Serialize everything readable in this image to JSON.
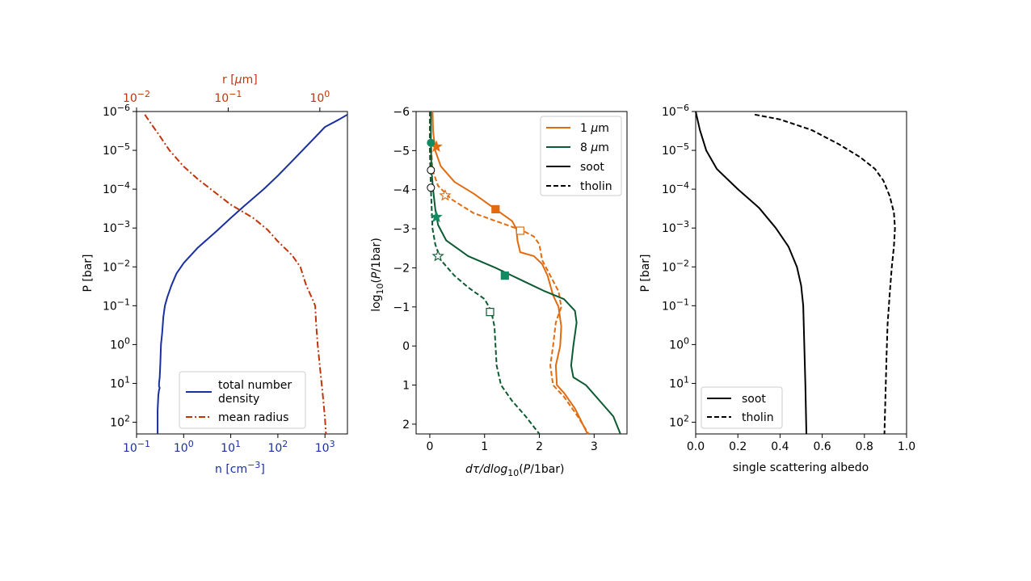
{
  "chart_data": [
    {
      "type": "line",
      "panel": "left",
      "xlabel": "n [cm",
      "xlabel_exp": "−3",
      "xlabel_close": "]",
      "xlabel_color": "#1a2fa0",
      "top_xlabel_pre": "r [",
      "top_xlabel_mu": "μ",
      "top_xlabel_post": "m]",
      "top_xlabel_color": "#c0360b",
      "ylabel": "P [bar]",
      "x_scale": "log",
      "xlim": [
        0.1,
        3000
      ],
      "top_x_scale": "log",
      "top_xlim": [
        0.01,
        2
      ],
      "y_scale": "log",
      "ylim_top": 1e-06,
      "ylim_bottom": 200,
      "y_inverted": true,
      "x_ticks": [
        {
          "base": "10",
          "exp": "−1"
        },
        {
          "base": "10",
          "exp": "0"
        },
        {
          "base": "10",
          "exp": "1"
        },
        {
          "base": "10",
          "exp": "2"
        },
        {
          "base": "10",
          "exp": "3"
        }
      ],
      "top_x_ticks": [
        {
          "base": "10",
          "exp": "−2"
        },
        {
          "base": "10",
          "exp": "−1"
        },
        {
          "base": "10",
          "exp": "0"
        }
      ],
      "y_ticks": [
        {
          "base": "10",
          "exp": "−6"
        },
        {
          "base": "10",
          "exp": "−5"
        },
        {
          "base": "10",
          "exp": "−4"
        },
        {
          "base": "10",
          "exp": "−3"
        },
        {
          "base": "10",
          "exp": "−2"
        },
        {
          "base": "10",
          "exp": "−1"
        },
        {
          "base": "10",
          "exp": "0"
        },
        {
          "base": "10",
          "exp": "1"
        },
        {
          "base": "10",
          "exp": "2"
        }
      ],
      "legend_position": "lower-right",
      "series": [
        {
          "name": "total number density",
          "name_line1": "total number",
          "name_line2": "density",
          "color": "#1a2fa0",
          "dash": "solid",
          "points": [
            [
              3000,
              1.2e-06
            ],
            [
              2000,
              1.6e-06
            ],
            [
              1000,
              2.5e-06
            ],
            [
              500,
              6e-06
            ],
            [
              200,
              1.9e-05
            ],
            [
              100,
              4.5e-05
            ],
            [
              50,
              0.0001
            ],
            [
              20,
              0.00026
            ],
            [
              10,
              0.00055
            ],
            [
              5,
              0.0012
            ],
            [
              2,
              0.0032
            ],
            [
              1,
              0.008
            ],
            [
              0.7,
              0.015
            ],
            [
              0.55,
              0.03
            ],
            [
              0.45,
              0.06
            ],
            [
              0.4,
              0.1
            ],
            [
              0.37,
              0.2
            ],
            [
              0.35,
              0.5
            ],
            [
              0.33,
              1
            ],
            [
              0.32,
              3
            ],
            [
              0.31,
              7
            ],
            [
              0.3,
              10
            ],
            [
              0.3,
              12
            ],
            [
              0.31,
              13
            ],
            [
              0.3,
              15
            ],
            [
              0.29,
              20
            ],
            [
              0.28,
              50
            ],
            [
              0.28,
              200
            ]
          ]
        },
        {
          "name": "mean radius",
          "color": "#c0360b",
          "dash": "dashdot",
          "points": [
            [
              0.15,
              1.2e-06
            ],
            [
              0.2,
              2e-06
            ],
            [
              0.3,
              4e-06
            ],
            [
              0.5,
              1e-05
            ],
            [
              1,
              2.6e-05
            ],
            [
              2,
              5.5e-05
            ],
            [
              5,
              0.00013
            ],
            [
              10,
              0.00025
            ],
            [
              30,
              0.00055
            ],
            [
              60,
              0.0011
            ],
            [
              100,
              0.0022
            ],
            [
              200,
              0.005
            ],
            [
              300,
              0.01
            ],
            [
              400,
              0.03
            ],
            [
              550,
              0.07
            ],
            [
              620,
              0.1
            ],
            [
              650,
              0.3
            ],
            [
              700,
              1
            ],
            [
              800,
              5
            ],
            [
              900,
              20
            ],
            [
              1000,
              80
            ],
            [
              1050,
              200
            ]
          ]
        }
      ]
    },
    {
      "type": "line",
      "panel": "middle",
      "xlabel_pre": "d",
      "xlabel_tau": "τ",
      "xlabel_mid": "/dlog",
      "xlabel_sub": "10",
      "xlabel_p": "(",
      "xlabel_P": "P",
      "xlabel_post": "/1bar)",
      "ylabel_pre": "log",
      "ylabel_sub": "10",
      "ylabel_open": "(",
      "ylabel_P": "P",
      "ylabel_post": "/1bar)",
      "xlim": [
        -0.25,
        3.6
      ],
      "ylim_top": -6,
      "ylim_bottom": 2.25,
      "y_inverted": true,
      "x_ticks": [
        "0",
        "1",
        "2",
        "3"
      ],
      "y_ticks": [
        "−6",
        "−5",
        "−4",
        "−3",
        "−2",
        "−1",
        "0",
        "1",
        "2"
      ],
      "legend_position": "top-right",
      "legend": [
        {
          "label_pre": "1 ",
          "label_mu": "μ",
          "label_post": "m",
          "color": "#e06b10",
          "dash": "solid"
        },
        {
          "label_pre": "8 ",
          "label_mu": "μ",
          "label_post": "m",
          "color": "#0d5a32",
          "dash": "solid"
        },
        {
          "label": "soot",
          "color": "#000000",
          "dash": "solid"
        },
        {
          "label": "tholin",
          "color": "#000000",
          "dash": "dashed"
        }
      ],
      "series": [
        {
          "wavelength": "1 μm",
          "material": "soot",
          "color": "#e06b10",
          "dash": "solid",
          "points": [
            [
              0.05,
              -6
            ],
            [
              0.06,
              -5.5
            ],
            [
              0.1,
              -5
            ],
            [
              0.2,
              -4.6
            ],
            [
              0.45,
              -4.2
            ],
            [
              0.8,
              -3.9
            ],
            [
              1.2,
              -3.5
            ],
            [
              1.5,
              -3.2
            ],
            [
              1.58,
              -3
            ],
            [
              1.6,
              -2.7
            ],
            [
              1.65,
              -2.4
            ],
            [
              1.9,
              -2.3
            ],
            [
              2.05,
              -2.1
            ],
            [
              2.15,
              -1.8
            ],
            [
              2.25,
              -1.3
            ],
            [
              2.35,
              -1
            ],
            [
              2.4,
              -0.5
            ],
            [
              2.38,
              0
            ],
            [
              2.3,
              0.5
            ],
            [
              2.32,
              1
            ],
            [
              2.45,
              1.2
            ],
            [
              2.65,
              1.6
            ],
            [
              2.88,
              2.25
            ]
          ]
        },
        {
          "wavelength": "1 μm",
          "material": "tholin",
          "color": "#e06b10",
          "dash": "dashed",
          "points": [
            [
              0.0,
              -6
            ],
            [
              0.02,
              -5.2
            ],
            [
              0.05,
              -4.5
            ],
            [
              0.15,
              -4.1
            ],
            [
              0.4,
              -3.75
            ],
            [
              0.8,
              -3.4
            ],
            [
              1.3,
              -3.15
            ],
            [
              1.7,
              -2.95
            ],
            [
              1.9,
              -2.8
            ],
            [
              2.0,
              -2.6
            ],
            [
              2.05,
              -2.2
            ],
            [
              2.2,
              -1.8
            ],
            [
              2.35,
              -1.4
            ],
            [
              2.4,
              -1
            ],
            [
              2.3,
              -0.6
            ],
            [
              2.25,
              0
            ],
            [
              2.2,
              0.5
            ],
            [
              2.25,
              1
            ],
            [
              2.45,
              1.3
            ],
            [
              2.7,
              1.8
            ],
            [
              2.9,
              2.25
            ]
          ]
        },
        {
          "wavelength": "8 μm",
          "material": "soot",
          "color": "#0d5a32",
          "dash": "solid",
          "points": [
            [
              0.02,
              -6
            ],
            [
              0.02,
              -5.2
            ],
            [
              0.03,
              -4.5
            ],
            [
              0.06,
              -4
            ],
            [
              0.1,
              -3.5
            ],
            [
              0.15,
              -3.1
            ],
            [
              0.3,
              -2.7
            ],
            [
              0.7,
              -2.3
            ],
            [
              1.2,
              -2
            ],
            [
              1.5,
              -1.8
            ],
            [
              1.8,
              -1.6
            ],
            [
              2.1,
              -1.4
            ],
            [
              2.45,
              -1.2
            ],
            [
              2.65,
              -0.9
            ],
            [
              2.68,
              -0.6
            ],
            [
              2.62,
              0
            ],
            [
              2.58,
              0.5
            ],
            [
              2.62,
              0.8
            ],
            [
              2.85,
              1
            ],
            [
              3.1,
              1.4
            ],
            [
              3.35,
              1.8
            ],
            [
              3.48,
              2.25
            ]
          ]
        },
        {
          "wavelength": "8 μm",
          "material": "tholin",
          "color": "#0d5a32",
          "dash": "dashed",
          "points": [
            [
              0.0,
              -6
            ],
            [
              0.0,
              -5
            ],
            [
              0.02,
              -4
            ],
            [
              0.05,
              -3
            ],
            [
              0.1,
              -2.6
            ],
            [
              0.2,
              -2.2
            ],
            [
              0.45,
              -1.8
            ],
            [
              0.7,
              -1.5
            ],
            [
              1.0,
              -1.2
            ],
            [
              1.12,
              -0.9
            ],
            [
              1.18,
              -0.5
            ],
            [
              1.2,
              0
            ],
            [
              1.22,
              0.5
            ],
            [
              1.3,
              1
            ],
            [
              1.5,
              1.4
            ],
            [
              1.75,
              1.8
            ],
            [
              2.0,
              2.25
            ]
          ]
        }
      ],
      "markers": [
        {
          "shape": "star",
          "filled": true,
          "color": "#e06b10",
          "x": 0.12,
          "y": -5.1
        },
        {
          "shape": "circle",
          "filled": false,
          "color": "#e06b10",
          "x": 0.02,
          "y": -4.5
        },
        {
          "shape": "star",
          "filled": false,
          "color": "#e06b10",
          "x": 0.28,
          "y": -3.85
        },
        {
          "shape": "square",
          "filled": true,
          "color": "#e06b10",
          "x": 1.2,
          "y": -3.5
        },
        {
          "shape": "square",
          "filled": false,
          "color": "#e06b10",
          "x": 1.65,
          "y": -2.95
        },
        {
          "shape": "circle",
          "filled": true,
          "color": "#138a62",
          "x": 0.02,
          "y": -5.2
        },
        {
          "shape": "circle",
          "filled": false,
          "color": "#0d5a32",
          "x": 0.02,
          "y": -4.05
        },
        {
          "shape": "star",
          "filled": true,
          "color": "#138a62",
          "x": 0.12,
          "y": -3.3
        },
        {
          "shape": "star",
          "filled": false,
          "color": "#0d5a32",
          "x": 0.15,
          "y": -2.3
        },
        {
          "shape": "square",
          "filled": true,
          "color": "#138a62",
          "x": 1.37,
          "y": -1.8
        },
        {
          "shape": "square",
          "filled": false,
          "color": "#0d5a32",
          "x": 1.1,
          "y": -0.87
        }
      ]
    },
    {
      "type": "line",
      "panel": "right",
      "xlabel": "single scattering albedo",
      "ylabel": "P [bar]",
      "xlim": [
        0.0,
        1.0
      ],
      "y_scale": "log",
      "ylim_top": 1e-06,
      "ylim_bottom": 200,
      "y_inverted": true,
      "x_ticks": [
        "0.0",
        "0.2",
        "0.4",
        "0.6",
        "0.8",
        "1.0"
      ],
      "y_ticks": [
        {
          "base": "10",
          "exp": "−6"
        },
        {
          "base": "10",
          "exp": "−5"
        },
        {
          "base": "10",
          "exp": "−4"
        },
        {
          "base": "10",
          "exp": "−3"
        },
        {
          "base": "10",
          "exp": "−2"
        },
        {
          "base": "10",
          "exp": "−1"
        },
        {
          "base": "10",
          "exp": "0"
        },
        {
          "base": "10",
          "exp": "1"
        },
        {
          "base": "10",
          "exp": "2"
        }
      ],
      "legend_position": "lower-left",
      "series": [
        {
          "name": "soot",
          "color": "#000000",
          "dash": "solid",
          "points": [
            [
              0.0,
              1e-06
            ],
            [
              0.02,
              3e-06
            ],
            [
              0.05,
              1e-05
            ],
            [
              0.1,
              3e-05
            ],
            [
              0.2,
              0.0001
            ],
            [
              0.3,
              0.0003
            ],
            [
              0.38,
              0.001
            ],
            [
              0.44,
              0.003
            ],
            [
              0.48,
              0.01
            ],
            [
              0.5,
              0.03
            ],
            [
              0.51,
              0.1
            ],
            [
              0.515,
              1
            ],
            [
              0.52,
              10
            ],
            [
              0.525,
              200
            ]
          ]
        },
        {
          "name": "tholin",
          "color": "#000000",
          "dash": "dashed",
          "points": [
            [
              0.28,
              1.2e-06
            ],
            [
              0.4,
              1.6e-06
            ],
            [
              0.55,
              3e-06
            ],
            [
              0.68,
              7e-06
            ],
            [
              0.78,
              1.5e-05
            ],
            [
              0.85,
              3e-05
            ],
            [
              0.89,
              6e-05
            ],
            [
              0.92,
              0.00015
            ],
            [
              0.94,
              0.0004
            ],
            [
              0.945,
              0.001
            ],
            [
              0.94,
              0.003
            ],
            [
              0.93,
              0.01
            ],
            [
              0.92,
              0.05
            ],
            [
              0.91,
              0.3
            ],
            [
              0.905,
              2
            ],
            [
              0.9,
              20
            ],
            [
              0.895,
              200
            ]
          ]
        }
      ]
    }
  ]
}
